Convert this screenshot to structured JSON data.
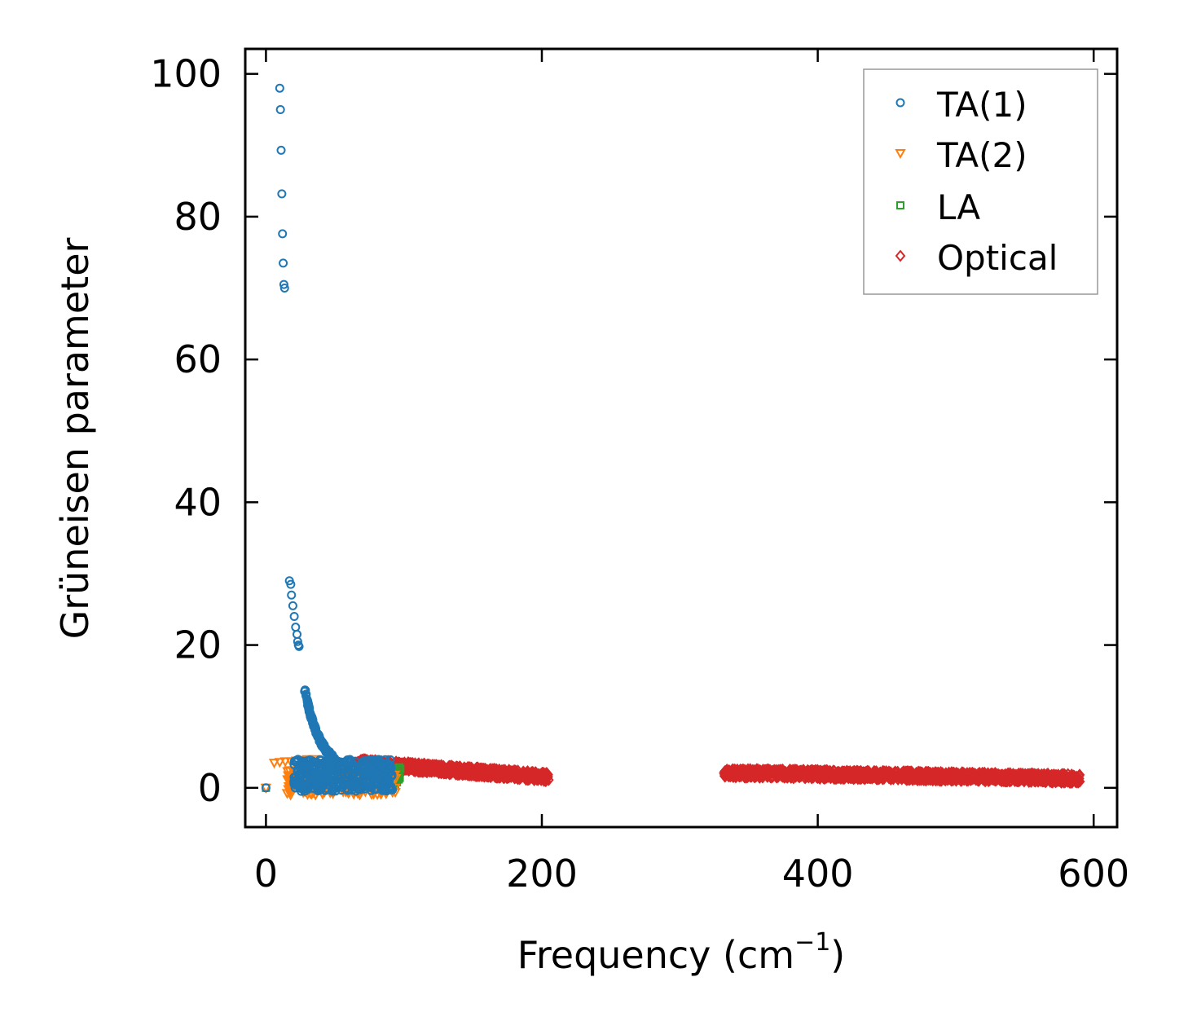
{
  "chart_data": {
    "type": "scatter",
    "xlabel": "Frequency (cm",
    "xlabel_sup": "−1",
    "xlabel_close": ")",
    "ylabel": "Grüneisen parameter",
    "xlim": [
      -15,
      617
    ],
    "ylim": [
      -5.5,
      103.5
    ],
    "xticks": [
      0,
      200,
      400,
      600
    ],
    "yticks": [
      0,
      20,
      40,
      60,
      80,
      100
    ],
    "xtick_labels": [
      "0",
      "200",
      "400",
      "600"
    ],
    "ytick_labels": [
      "0",
      "20",
      "40",
      "60",
      "80",
      "100"
    ],
    "grid": false,
    "legend_position": "top-right",
    "series": [
      {
        "name": "TA(1)",
        "marker": "circle",
        "color": "#1f77b4",
        "x": [
          0,
          10,
          10.5,
          11,
          11.5,
          12,
          12.5,
          13,
          13.5,
          17,
          18,
          18.5,
          19.5,
          20.5,
          21.5,
          22.5,
          23,
          23.5,
          24,
          28,
          29,
          30,
          31,
          32,
          33,
          34,
          36,
          38,
          40,
          42,
          45,
          48,
          52,
          55,
          60,
          65,
          70,
          75,
          80,
          85,
          90
        ],
        "y": [
          0,
          98,
          95,
          89.3,
          83.2,
          77.6,
          73.5,
          70.5,
          70,
          29,
          28.5,
          27,
          25.5,
          24,
          22.5,
          21.5,
          20.5,
          20,
          19.8,
          13.5,
          13,
          12,
          11,
          10.5,
          10,
          9.5,
          8,
          7.5,
          6,
          5.5,
          5,
          4,
          3.6,
          3.2,
          3,
          2.8,
          2.6,
          2.5,
          2.4,
          2.3,
          2.2
        ],
        "x_band": [
          20,
          92
        ],
        "y_band": [
          -0.5,
          4
        ]
      },
      {
        "name": "TA(2)",
        "marker": "triangle-down",
        "color": "#ff7f0e",
        "x": [
          0,
          6,
          10,
          14,
          18,
          22,
          26,
          30,
          35,
          40,
          50,
          60,
          70,
          80,
          90
        ],
        "y": [
          0,
          3.5,
          3.6,
          3.7,
          3.7,
          3.8,
          3.9,
          4.0,
          4.0,
          3.5,
          3.2,
          3.0,
          2.7,
          2.4,
          2.0
        ],
        "x_band": [
          15,
          95
        ],
        "y_band": [
          -1,
          2.5
        ]
      },
      {
        "name": "LA",
        "marker": "square",
        "color": "#2ca02c",
        "x": [
          0,
          60,
          70,
          80,
          90,
          95
        ],
        "y": [
          0,
          2.5,
          2.0,
          1.5,
          1.0,
          0.8
        ],
        "x_band": [
          50,
          98
        ],
        "y_band": [
          0,
          3
        ]
      },
      {
        "name": "Optical",
        "marker": "diamond",
        "color": "#d62728",
        "x_band_1": [
          65,
          205
        ],
        "y_trend_1": [
          3.5,
          1.5
        ],
        "x_band_2": [
          332,
          590
        ],
        "y_trend_2": [
          2.1,
          1.3
        ]
      }
    ]
  }
}
